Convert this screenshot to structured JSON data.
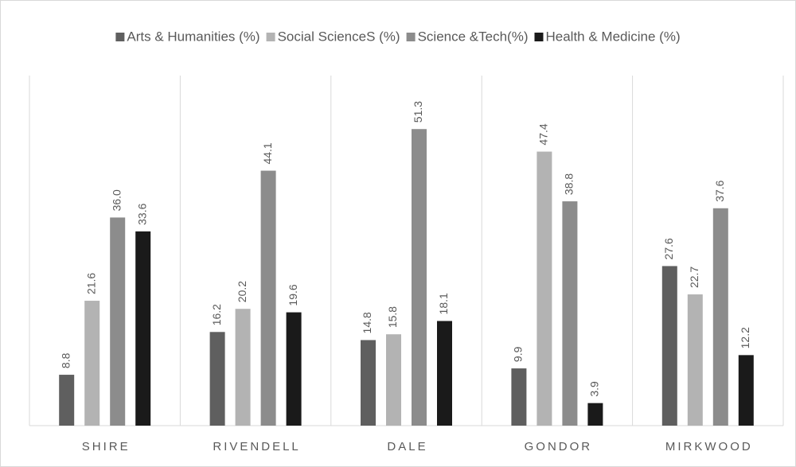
{
  "chart_data": {
    "type": "bar",
    "categories": [
      "SHIRE",
      "RIVENDELL",
      "DALE",
      "GONDOR",
      "MIRKWOOD"
    ],
    "series": [
      {
        "name": "Arts & Humanities (%)",
        "color": "#5f5f5f",
        "values": [
          8.8,
          16.2,
          14.8,
          9.9,
          27.6
        ],
        "value_labels": [
          "8.8",
          "16.2",
          "14.8",
          "9.9",
          "27.6"
        ]
      },
      {
        "name": "Social ScienceS (%)",
        "color": "#b3b3b3",
        "values": [
          21.6,
          20.2,
          15.8,
          47.4,
          22.7
        ],
        "value_labels": [
          "21.6",
          "20.2",
          "15.8",
          "47.4",
          "22.7"
        ]
      },
      {
        "name": "Science &Tech(%)",
        "color": "#8c8c8c",
        "values": [
          36.0,
          44.1,
          51.3,
          38.8,
          37.6
        ],
        "value_labels": [
          "36.0",
          "44.1",
          "51.3",
          "38.8",
          "37.6"
        ]
      },
      {
        "name": "Health & Medicine (%)",
        "color": "#1a1a1a",
        "values": [
          33.6,
          19.6,
          18.1,
          3.9,
          12.2
        ],
        "value_labels": [
          "33.6",
          "19.6",
          "18.1",
          "3.9",
          "12.2"
        ]
      }
    ],
    "ylim": [
      0,
      60
    ],
    "legend": "top"
  }
}
